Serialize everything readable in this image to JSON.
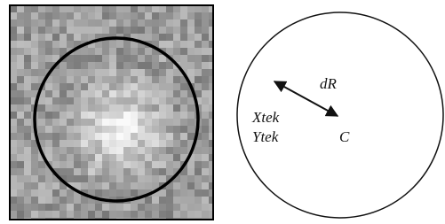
{
  "labels": {
    "dr": "dR",
    "xtek": "Xtek",
    "ytek": "Ytek",
    "c": "C"
  }
}
